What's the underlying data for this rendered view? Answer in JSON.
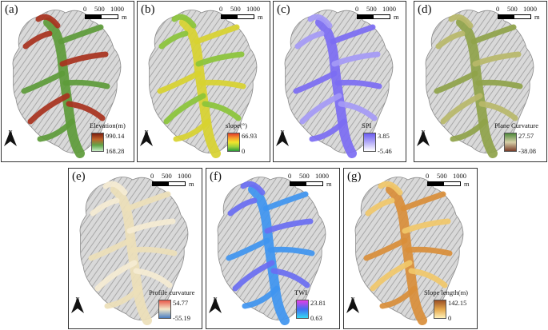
{
  "scale": {
    "n0": "0",
    "n1": "500",
    "n2": "1000",
    "unit": "m"
  },
  "north_label": "N",
  "panels": [
    {
      "id": "a",
      "label": "(a)",
      "legend": "Elevation(m)",
      "max": "990.14",
      "min": "168.28",
      "grad": [
        "#7a1e0f",
        "#c0622a",
        "#5fa548",
        "#c8ecc4"
      ],
      "fill": "#5d9b3a",
      "fill2": "#a8321e"
    },
    {
      "id": "b",
      "label": "(b)",
      "legend": "slope(°)",
      "max": "66.93",
      "min": "0",
      "grad": [
        "#e23b2a",
        "#f59a2b",
        "#f2e52c",
        "#9fd13b",
        "#2b9d3a"
      ],
      "fill": "#d8d330",
      "fill2": "#8bc43a"
    },
    {
      "id": "c",
      "label": "(c)",
      "legend": "SPI",
      "max": "3.85",
      "min": "-5.46",
      "grad": [
        "#6a5cf0",
        "#b3aaf7",
        "#ffffff"
      ],
      "fill": "#7c6df3",
      "fill2": "#a59af6"
    },
    {
      "id": "d",
      "label": "(d)",
      "legend": "Plane Curvature",
      "max": "27.57",
      "min": "-38.08",
      "grad": [
        "#4f8a3b",
        "#d6cfa8",
        "#7a3f2a"
      ],
      "fill": "#8fa34a",
      "fill2": "#b8b86a"
    },
    {
      "id": "e",
      "label": "(e)",
      "legend": "Profile curvature",
      "max": "54.77",
      "min": "-55.19",
      "grad": [
        "#e8584a",
        "#f3e8c8",
        "#4a7fc4"
      ],
      "fill": "#ede0b8",
      "fill2": "#f5ecd2"
    },
    {
      "id": "f",
      "label": "(f)",
      "legend": "TWI",
      "max": "23.81",
      "min": "0.63",
      "grad": [
        "#e63de6",
        "#3f6ef2",
        "#37d8f2"
      ],
      "fill": "#3f95f0",
      "fill2": "#6a6ef2"
    },
    {
      "id": "g",
      "label": "(g)",
      "legend": "Slope length(m)",
      "max": "142.15",
      "min": "0",
      "grad": [
        "#9a4f25",
        "#e4a64a",
        "#fff1b8"
      ],
      "fill": "#d98e3a",
      "fill2": "#f1c86a"
    }
  ]
}
